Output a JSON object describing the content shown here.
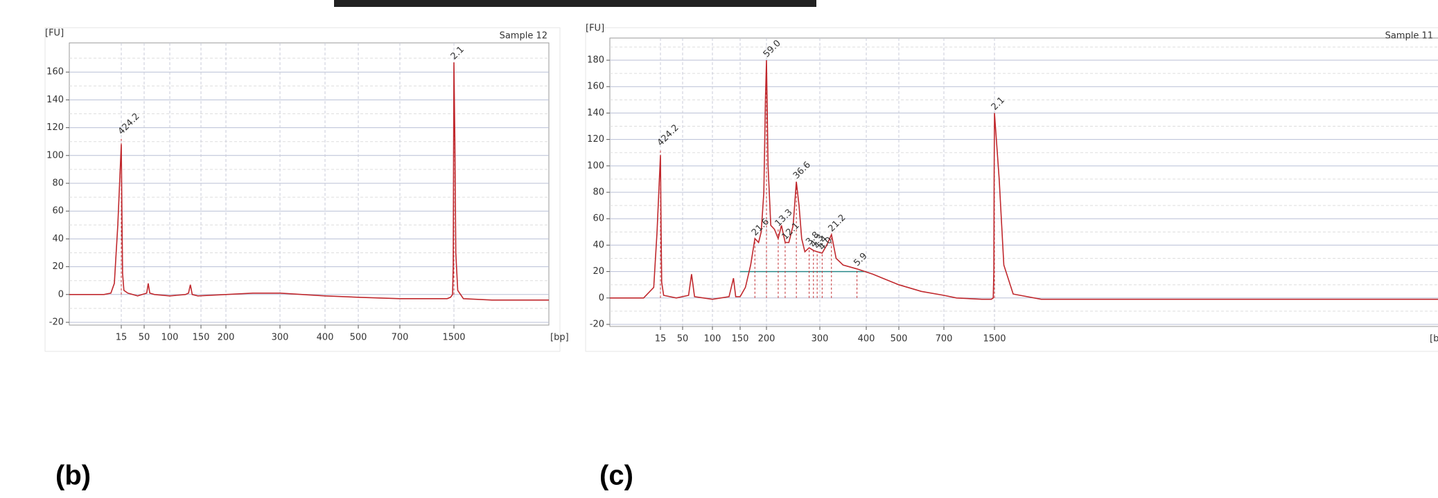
{
  "chart_data": [
    {
      "type": "line",
      "panel_label": "(b)",
      "title": "Sample 12",
      "ylabel": "[FU]",
      "xlabel": "[bp]",
      "xlim": [
        0,
        2000
      ],
      "ylim": [
        -20,
        180
      ],
      "xticks": [
        15,
        50,
        100,
        150,
        200,
        300,
        400,
        500,
        700,
        1500
      ],
      "yticks": [
        -20,
        0,
        20,
        40,
        60,
        80,
        100,
        120,
        140,
        160
      ],
      "grid": true,
      "x": [
        0,
        5,
        10,
        12,
        13,
        14,
        15,
        16,
        17,
        19,
        25,
        40,
        55,
        58,
        61,
        70,
        100,
        125,
        130,
        133,
        136,
        145,
        200,
        250,
        300,
        400,
        500,
        700,
        1000,
        1400,
        1450,
        1480,
        1490,
        1495,
        1500,
        1505,
        1510,
        1520,
        1550,
        1700,
        2000
      ],
      "series": [
        {
          "color": "#c0282d",
          "values": [
            0,
            0,
            0,
            1,
            8,
            50,
            108,
            60,
            15,
            3,
            1,
            -1,
            1,
            8,
            1,
            0,
            -1,
            0,
            1,
            7,
            0,
            -1,
            0,
            1,
            1,
            -1,
            -2,
            -3,
            -3,
            -3,
            -2,
            0,
            20,
            100,
            167,
            110,
            30,
            3,
            -3,
            -4,
            -4
          ]
        }
      ],
      "annotations": [
        {
          "text": "424.2",
          "bp": 15,
          "fu": 113,
          "color": "#2e8b2e"
        },
        {
          "text": "2.1",
          "bp": 1500,
          "fu": 167,
          "color": "#9b30d0"
        }
      ]
    },
    {
      "type": "line",
      "panel_label": "(c)",
      "title": "Sample 11",
      "ylabel": "[FU]",
      "xlabel": "[bp]",
      "xlim": [
        0,
        2000
      ],
      "ylim": [
        -20,
        195
      ],
      "xticks": [
        15,
        50,
        100,
        150,
        200,
        300,
        400,
        500,
        700,
        1500
      ],
      "yticks": [
        -20,
        0,
        20,
        40,
        60,
        80,
        100,
        120,
        140,
        160,
        180
      ],
      "grid": true,
      "x": [
        0,
        5,
        10,
        13,
        14,
        15,
        16,
        17,
        20,
        40,
        60,
        65,
        70,
        100,
        130,
        138,
        142,
        150,
        160,
        170,
        178,
        185,
        190,
        195,
        198,
        200,
        203,
        208,
        215,
        222,
        228,
        235,
        242,
        250,
        256,
        261,
        266,
        272,
        280,
        288,
        295,
        305,
        315,
        325,
        335,
        350,
        380,
        420,
        500,
        600,
        700,
        900,
        1300,
        1450,
        1480,
        1490,
        1495,
        1500,
        1505,
        1510,
        1520,
        1550,
        2000
      ],
      "series": [
        {
          "color": "#c0282d",
          "values": [
            0,
            0,
            0,
            8,
            50,
            108,
            55,
            12,
            2,
            0,
            2,
            18,
            1,
            -1,
            1,
            15,
            1,
            1,
            8,
            25,
            45,
            42,
            50,
            80,
            150,
            180,
            100,
            55,
            52,
            45,
            55,
            42,
            42,
            55,
            88,
            70,
            45,
            35,
            38,
            36,
            35,
            34,
            40,
            48,
            30,
            25,
            22,
            18,
            10,
            5,
            2,
            0,
            -1,
            -1,
            0,
            20,
            90,
            140,
            90,
            25,
            3,
            -1,
            -1
          ]
        }
      ],
      "region": [
        150,
        400
      ],
      "region_level": 20,
      "annotations": [
        {
          "text": "424.2",
          "bp": 15,
          "fu": 113,
          "color": "#2e8b2e"
        },
        {
          "text": "21.6",
          "bp": 178,
          "fu": 45,
          "color": "#222222"
        },
        {
          "text": "59.0",
          "bp": 200,
          "fu": 180,
          "color": "#222222"
        },
        {
          "text": "13.3",
          "bp": 222,
          "fu": 52,
          "color": "#222222"
        },
        {
          "text": "12.1",
          "bp": 235,
          "fu": 42,
          "color": "#222222"
        },
        {
          "text": "36.6",
          "bp": 256,
          "fu": 88,
          "color": "#222222"
        },
        {
          "text": "3.8",
          "bp": 280,
          "fu": 38,
          "color": "#222222"
        },
        {
          "text": "4.3",
          "bp": 288,
          "fu": 36,
          "color": "#222222"
        },
        {
          "text": "4.4",
          "bp": 295,
          "fu": 35,
          "color": "#222222"
        },
        {
          "text": "4.0",
          "bp": 305,
          "fu": 34,
          "color": "#222222"
        },
        {
          "text": "21.2",
          "bp": 325,
          "fu": 48,
          "color": "#222222"
        },
        {
          "text": "5.9",
          "bp": 380,
          "fu": 22,
          "color": "#222222"
        },
        {
          "text": "2.1",
          "bp": 1500,
          "fu": 140,
          "color": "#9b30d0"
        }
      ]
    }
  ]
}
